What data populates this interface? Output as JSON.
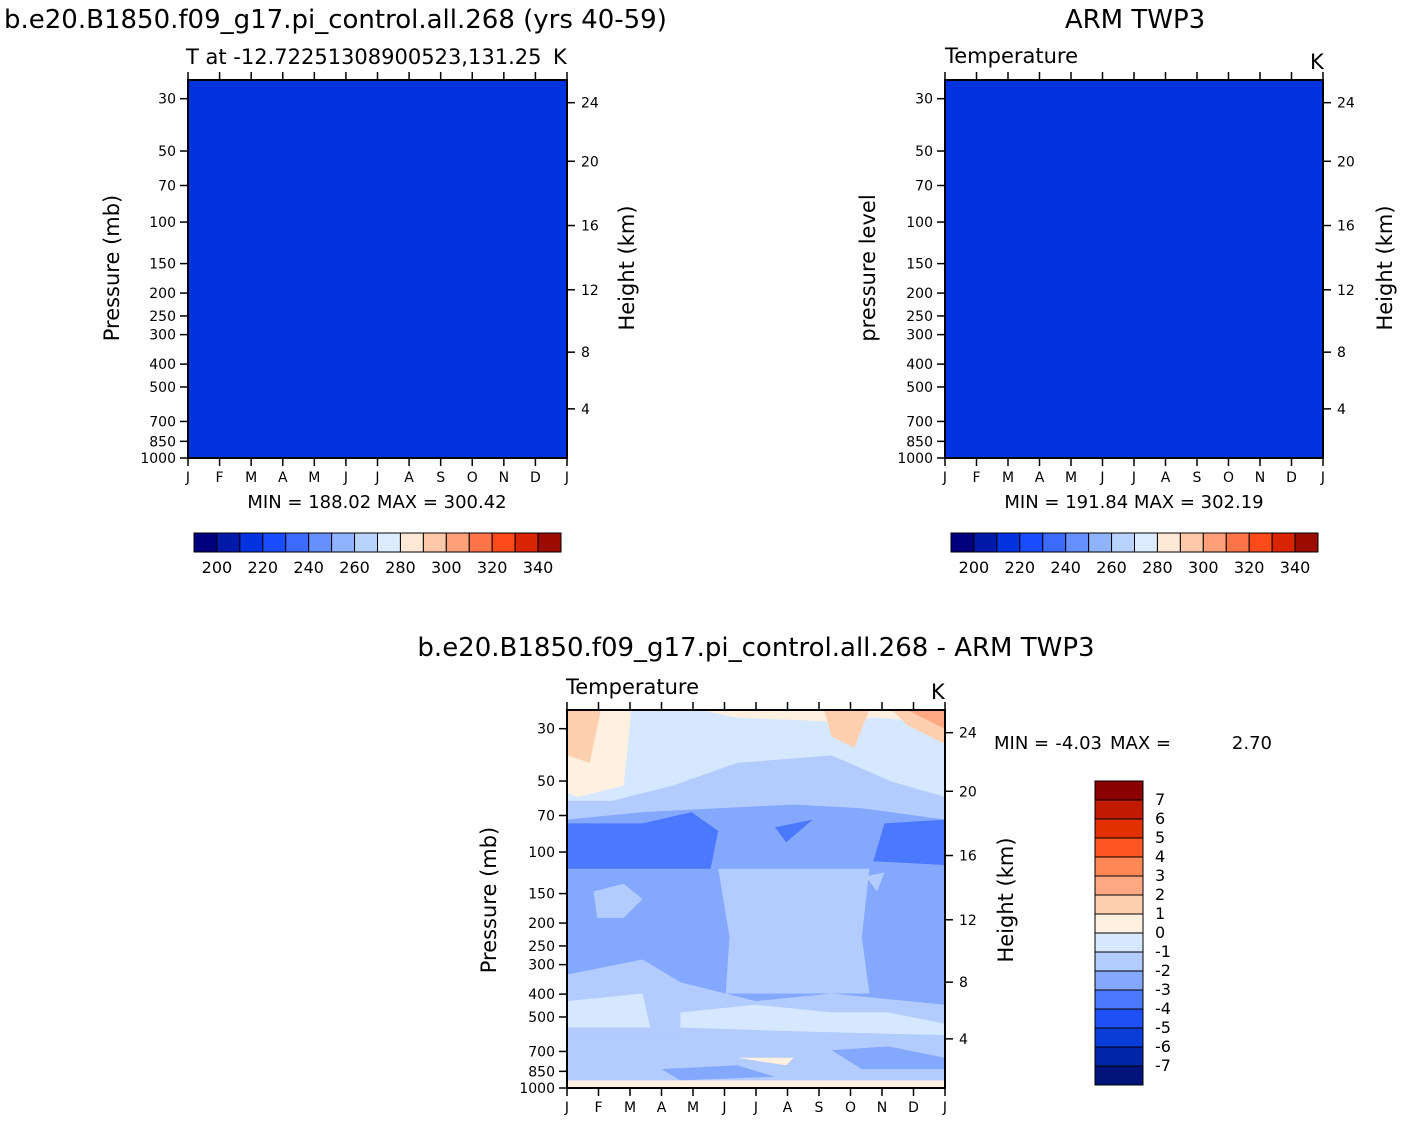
{
  "chart_data": [
    {
      "type": "heatmap",
      "title": "b.e20.B1850.f09_g17.pi_control.all.268 (yrs 40-59)",
      "subtitle": "T at -12.72251308900523,131.25",
      "units": "K",
      "ylabel": "Pressure (mb)",
      "ylabel_right": "Height (km)",
      "x_ticks": [
        "J",
        "F",
        "M",
        "A",
        "M",
        "J",
        "J",
        "A",
        "S",
        "O",
        "N",
        "D",
        "J"
      ],
      "y_ticks": [
        "30",
        "50",
        "70",
        "100",
        "150",
        "200",
        "250",
        "300",
        "400",
        "500",
        "700",
        "850",
        "1000"
      ],
      "y_ticks_right": [
        "24",
        "20",
        "16",
        "12",
        "8",
        "4"
      ],
      "stats": "MIN = 188.02 MAX = 300.42",
      "colorbar_labels": [
        "200",
        "220",
        "240",
        "260",
        "280",
        "300",
        "320",
        "340"
      ],
      "levels": [
        190,
        200,
        210,
        220,
        230,
        240,
        250,
        260,
        270,
        280,
        290,
        300,
        310,
        320,
        330,
        340
      ],
      "colors": [
        "#00007f",
        "#0019a8",
        "#0033e0",
        "#1a4cff",
        "#3d6bff",
        "#6690ff",
        "#90b3ff",
        "#b9d3ff",
        "#dcebff",
        "#ffe9d6",
        "#ffc8a8",
        "#ffa07a",
        "#ff7448",
        "#ff4a1a",
        "#d92400",
        "#9c0b00",
        "#6b0000"
      ],
      "bands": [
        [
          200,
          1
        ],
        [
          210,
          2
        ],
        [
          220,
          4
        ],
        [
          230,
          4
        ],
        [
          250,
          5
        ],
        [
          260,
          6
        ],
        [
          270,
          7
        ],
        [
          280,
          8
        ],
        [
          290,
          9
        ],
        [
          300,
          10
        ],
        [
          310,
          11
        ],
        [
          320,
          12
        ],
        [
          330,
          13
        ]
      ]
    },
    {
      "type": "heatmap",
      "title": "ARM TWP3",
      "subtitle": "Temperature",
      "units": "K",
      "ylabel": "pressure level",
      "ylabel_right": "Height (km)",
      "x_ticks": [
        "J",
        "F",
        "M",
        "A",
        "M",
        "J",
        "J",
        "A",
        "S",
        "O",
        "N",
        "D",
        "J"
      ],
      "y_ticks": [
        "30",
        "50",
        "70",
        "100",
        "150",
        "200",
        "250",
        "300",
        "400",
        "500",
        "700",
        "850",
        "1000"
      ],
      "y_ticks_right": [
        "24",
        "20",
        "16",
        "12",
        "8",
        "4"
      ],
      "stats": "MIN = 191.84 MAX = 302.19",
      "colorbar_labels": [
        "200",
        "220",
        "240",
        "260",
        "280",
        "300",
        "320",
        "340"
      ]
    },
    {
      "type": "heatmap",
      "title": "b.e20.B1850.f09_g17.pi_control.all.268 - ARM TWP3",
      "subtitle": "Temperature",
      "units": "K",
      "ylabel": "Pressure (mb)",
      "ylabel_right": "Height (km)",
      "x_ticks": [
        "J",
        "F",
        "M",
        "A",
        "M",
        "J",
        "J",
        "A",
        "S",
        "O",
        "N",
        "D",
        "J"
      ],
      "y_ticks": [
        "30",
        "50",
        "70",
        "100",
        "150",
        "200",
        "250",
        "300",
        "400",
        "500",
        "700",
        "850",
        "1000"
      ],
      "y_ticks_right": [
        "24",
        "20",
        "16",
        "12",
        "8",
        "4"
      ],
      "stats_min_label": "MIN =",
      "stats_min": "-4.03",
      "stats_max_label": "MAX =",
      "stats_max": "2.70",
      "colorbar_labels": [
        "7",
        "6",
        "5",
        "4",
        "3",
        "2",
        "1",
        "0",
        "-1",
        "-2",
        "-3",
        "-4",
        "-5",
        "-6",
        "-7"
      ],
      "colors": [
        "#8b0000",
        "#c21a00",
        "#e33000",
        "#ff5522",
        "#ff8855",
        "#ffa882",
        "#ffd0b0",
        "#fff0e0",
        "#d6e8ff",
        "#b3ccff",
        "#85a8ff",
        "#4a78ff",
        "#1f50f5",
        "#0a3cd8",
        "#0026a8",
        "#00137a"
      ]
    }
  ]
}
